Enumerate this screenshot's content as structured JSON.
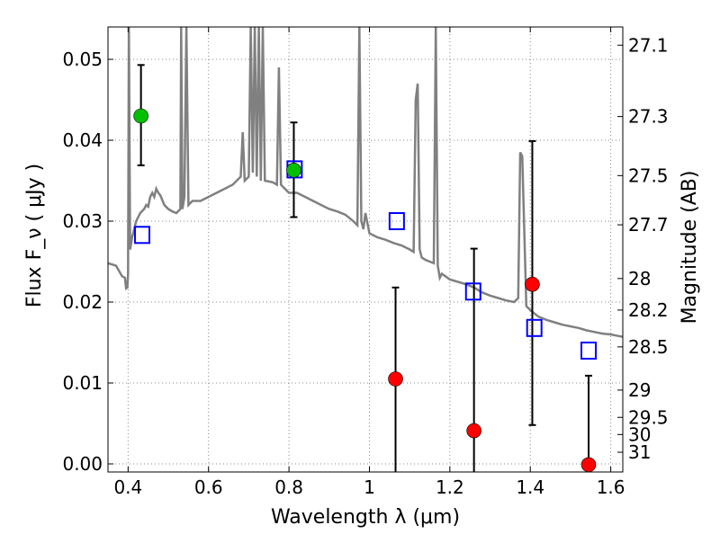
{
  "chart_data": {
    "type": "scatter",
    "title": "",
    "xlabel": "Wavelength  λ (μm)",
    "ylabel": "Flux  F_ν  ( μJy )",
    "ylabel_right": "Magnitude (AB)",
    "xlim": [
      0.35,
      1.63
    ],
    "ylim": [
      -0.001,
      0.054
    ],
    "grid": true,
    "x_ticks": [
      0.4,
      0.6,
      0.8,
      1.0,
      1.2,
      1.4,
      1.6
    ],
    "x_tick_labels": [
      "0.4",
      "0.6",
      "0.8",
      "1",
      "1.2",
      "1.4",
      "1.6"
    ],
    "y_ticks": [
      0.0,
      0.01,
      0.02,
      0.03,
      0.04,
      0.05
    ],
    "y_tick_labels": [
      "0.00",
      "0.01",
      "0.02",
      "0.03",
      "0.04",
      "0.05"
    ],
    "right_ticks": [
      {
        "flux": 0.05175,
        "label": "27.1"
      },
      {
        "flux": 0.04293,
        "label": "27.3"
      },
      {
        "flux": 0.03563,
        "label": "27.5"
      },
      {
        "flux": 0.02955,
        "label": "27.7"
      },
      {
        "flux": 0.02291,
        "label": "28"
      },
      {
        "flux": 0.01901,
        "label": "28.2"
      },
      {
        "flux": 0.01446,
        "label": "28.5"
      },
      {
        "flux": 0.00912,
        "label": "29"
      },
      {
        "flux": 0.00575,
        "label": "29.5"
      },
      {
        "flux": 0.00363,
        "label": "30"
      },
      {
        "flux": 0.00144,
        "label": "31"
      }
    ],
    "colors": {
      "spectrum": "#808080",
      "detection": "#00c000",
      "upper_limit": "#ff0000",
      "model": "#0000ff",
      "errorbar": "#000000",
      "grid": "#888888"
    },
    "series": [
      {
        "marker": "square-open",
        "color": "#0000ff",
        "x": [
          0.435,
          0.814,
          1.068,
          1.258,
          1.41,
          1.545
        ],
        "y": [
          0.0283,
          0.0364,
          0.03,
          0.0213,
          0.0168,
          0.014
        ]
      },
      {
        "marker": "circle",
        "color": "#00c000",
        "x": [
          0.432,
          0.812
        ],
        "y": [
          0.043,
          0.0363
        ],
        "yerr_low": [
          0.0061,
          0.0058
        ],
        "yerr_high": [
          0.0063,
          0.0059
        ]
      },
      {
        "marker": "circle",
        "color": "#ff0000",
        "x": [
          1.065,
          1.26,
          1.405,
          1.545
        ],
        "y": [
          0.0105,
          0.0041,
          0.0222,
          -0.0001
        ],
        "yerr_low": [
          0.0115,
          0.0051,
          0.0174,
          0.0
        ],
        "yerr_high": [
          0.0113,
          0.0225,
          0.0177,
          0.011
        ]
      },
      {
        "marker": "line",
        "color": "#808080",
        "x": [
          0.35,
          0.37,
          0.385,
          0.392,
          0.395,
          0.398,
          0.4,
          0.402,
          0.405,
          0.41,
          0.42,
          0.43,
          0.44,
          0.445,
          0.45,
          0.455,
          0.46,
          0.465,
          0.47,
          0.475,
          0.48,
          0.49,
          0.5,
          0.51,
          0.52,
          0.53,
          0.532,
          0.535,
          0.54,
          0.545,
          0.55,
          0.56,
          0.58,
          0.6,
          0.62,
          0.64,
          0.66,
          0.68,
          0.685,
          0.69,
          0.7,
          0.705,
          0.71,
          0.715,
          0.72,
          0.725,
          0.73,
          0.735,
          0.74,
          0.76,
          0.77,
          0.775,
          0.78,
          0.79,
          0.8,
          0.82,
          0.84,
          0.86,
          0.88,
          0.9,
          0.92,
          0.94,
          0.96,
          0.97,
          0.975,
          0.98,
          0.985,
          0.99,
          1.0,
          1.02,
          1.04,
          1.06,
          1.08,
          1.1,
          1.11,
          1.115,
          1.12,
          1.125,
          1.13,
          1.14,
          1.15,
          1.16,
          1.165,
          1.17,
          1.175,
          1.18,
          1.2,
          1.22,
          1.24,
          1.26,
          1.28,
          1.3,
          1.32,
          1.34,
          1.36,
          1.37,
          1.375,
          1.38,
          1.39,
          1.4,
          1.42,
          1.44,
          1.46,
          1.48,
          1.5,
          1.52,
          1.54,
          1.56,
          1.58,
          1.6,
          1.62,
          1.63
        ],
        "y": [
          0.0248,
          0.0245,
          0.0232,
          0.023,
          0.0217,
          0.0218,
          0.0235,
          0.054,
          0.0265,
          0.028,
          0.03,
          0.031,
          0.0315,
          0.032,
          0.0318,
          0.033,
          0.0335,
          0.033,
          0.034,
          0.0335,
          0.0332,
          0.032,
          0.0315,
          0.0312,
          0.031,
          0.0315,
          0.054,
          0.0315,
          0.033,
          0.054,
          0.032,
          0.0325,
          0.0325,
          0.033,
          0.0335,
          0.034,
          0.0345,
          0.0355,
          0.041,
          0.035,
          0.0355,
          0.054,
          0.036,
          0.054,
          0.0355,
          0.054,
          0.035,
          0.054,
          0.035,
          0.0348,
          0.0345,
          0.049,
          0.0345,
          0.034,
          0.0335,
          0.0335,
          0.033,
          0.0325,
          0.032,
          0.0315,
          0.0312,
          0.0308,
          0.03,
          0.0295,
          0.054,
          0.03,
          0.029,
          0.031,
          0.0285,
          0.028,
          0.0277,
          0.0273,
          0.027,
          0.0265,
          0.0262,
          0.045,
          0.047,
          0.0265,
          0.0255,
          0.0252,
          0.025,
          0.0248,
          0.054,
          0.0245,
          0.023,
          0.0235,
          0.0228,
          0.0225,
          0.0222,
          0.0218,
          0.0212,
          0.0208,
          0.0205,
          0.0202,
          0.02,
          0.0205,
          0.0385,
          0.038,
          0.0195,
          0.019,
          0.0182,
          0.0178,
          0.0175,
          0.0172,
          0.017,
          0.0168,
          0.0165,
          0.0163,
          0.0161,
          0.016,
          0.0158,
          0.0157
        ]
      }
    ]
  }
}
